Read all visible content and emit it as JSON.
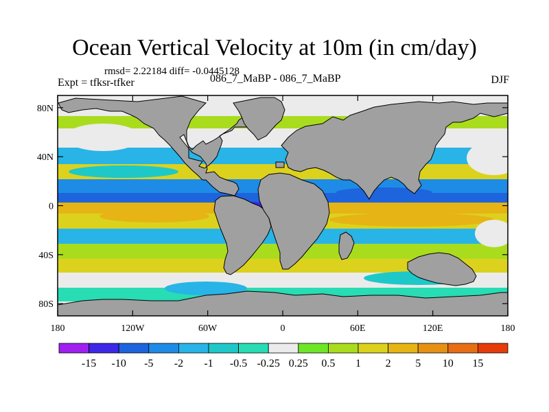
{
  "chart_data": {
    "type": "heatmap",
    "title": "Ocean Vertical Velocity at 10m (in cm/day)",
    "stats_text": "rmsd= 2.22184 diff= -0.0445128",
    "runs_text": "086_7_MaBP - 086_7_MaBP",
    "experiment_text": "Expt = tfksr-tfker",
    "season": "DJF",
    "x_ticks": [
      "180",
      "120W",
      "60W",
      "0",
      "60E",
      "120E",
      "180"
    ],
    "y_ticks": [
      "80N",
      "40N",
      "0",
      "40S",
      "80S"
    ],
    "xlim": [
      -180,
      180
    ],
    "ylim": [
      -90,
      90
    ],
    "x_tick_values": [
      -180,
      -120,
      -60,
      0,
      60,
      120,
      180
    ],
    "y_tick_values": [
      80,
      40,
      0,
      -40,
      -80
    ],
    "colorbar": {
      "labels": [
        "-15",
        "-10",
        "-5",
        "-2",
        "-1",
        "-0.5",
        "-0.25",
        "0.25",
        "0.5",
        "1",
        "2",
        "5",
        "10",
        "15"
      ],
      "colors": [
        "#a020f0",
        "#3c28e6",
        "#1e64dc",
        "#1e8ce6",
        "#28b4e6",
        "#1ec8c8",
        "#28dcb4",
        "#ebebeb",
        "#6ee628",
        "#aadc1e",
        "#dcd21e",
        "#e6b414",
        "#e69114",
        "#e66e14",
        "#e63c0a"
      ]
    }
  }
}
